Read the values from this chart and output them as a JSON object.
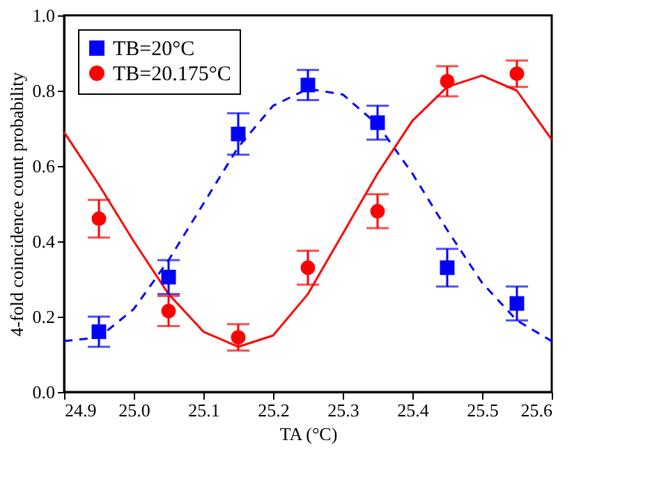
{
  "chart_data": {
    "type": "scatter",
    "xlabel": "TA (°C)",
    "ylabel": "4-fold coincidence count probability",
    "xlim": [
      24.9,
      25.6
    ],
    "xticks": [
      {
        "value": 24.9,
        "label": "24.9"
      },
      {
        "value": 25.0,
        "label": "25.0"
      },
      {
        "value": 25.1,
        "label": "25.1"
      },
      {
        "value": 25.2,
        "label": "25.2"
      },
      {
        "value": 25.3,
        "label": "25.3"
      },
      {
        "value": 25.4,
        "label": "25.4"
      },
      {
        "value": 25.5,
        "label": "25.5"
      },
      {
        "value": 25.6,
        "label": "25.6"
      }
    ],
    "ylim": [
      0,
      1
    ],
    "yticks": [
      {
        "value": 0,
        "label": "0.0"
      },
      {
        "value": 0.2,
        "label": "0.2"
      },
      {
        "value": 0.4,
        "label": "0.4"
      },
      {
        "value": 0.6,
        "label": "0.6"
      },
      {
        "value": 0.8,
        "label": "0.8"
      },
      {
        "value": 1,
        "label": "1.0"
      }
    ],
    "grid": false,
    "legend": "top left",
    "series": [
      {
        "name": "TB=20°C",
        "marker": "square",
        "color": "#0000ff",
        "x": [
          24.95,
          25.05,
          25.15,
          25.25,
          25.35,
          25.45,
          25.55
        ],
        "values": [
          0.16,
          0.305,
          0.685,
          0.815,
          0.715,
          0.33,
          0.235
        ],
        "errors": [
          0.04,
          0.045,
          0.055,
          0.04,
          0.045,
          0.05,
          0.045
        ]
      },
      {
        "name": "TB=20.175°C",
        "marker": "circle",
        "color": "#ff0000",
        "x": [
          24.95,
          25.05,
          25.15,
          25.25,
          25.35,
          25.45,
          25.55
        ],
        "values": [
          0.46,
          0.215,
          0.145,
          0.33,
          0.48,
          0.825,
          0.845
        ],
        "errors": [
          0.05,
          0.04,
          0.035,
          0.045,
          0.045,
          0.04,
          0.035
        ]
      },
      {
        "type": "line",
        "line_style": "dashed",
        "color": "#0000ff",
        "x": [
          24.9,
          24.95,
          25.0,
          25.05,
          25.1,
          25.15,
          25.2,
          25.25,
          25.3,
          25.35,
          25.4,
          25.45,
          25.5,
          25.55,
          25.6
        ],
        "values": [
          0.135,
          0.145,
          0.22,
          0.35,
          0.5,
          0.65,
          0.76,
          0.805,
          0.79,
          0.71,
          0.58,
          0.43,
          0.29,
          0.19,
          0.135
        ]
      },
      {
        "type": "line",
        "line_style": "solid",
        "color": "#ff0000",
        "x": [
          24.9,
          24.95,
          25.0,
          25.05,
          25.1,
          25.15,
          25.2,
          25.25,
          25.3,
          25.35,
          25.4,
          25.45,
          25.5,
          25.55,
          25.6
        ],
        "values": [
          0.69,
          0.55,
          0.4,
          0.26,
          0.16,
          0.12,
          0.15,
          0.26,
          0.42,
          0.58,
          0.72,
          0.81,
          0.84,
          0.8,
          0.67
        ]
      }
    ]
  }
}
